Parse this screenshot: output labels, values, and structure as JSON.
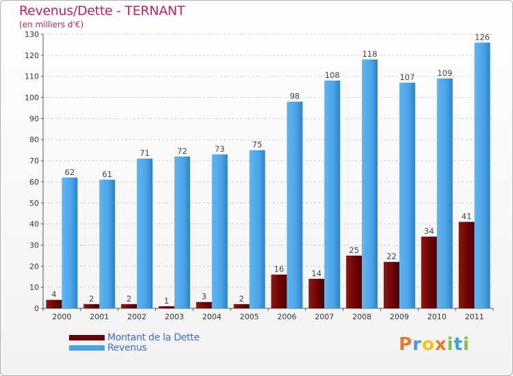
{
  "header": {
    "title": "Revenus/Dette - TERNANT",
    "subtitle": "(en milliers d'€)"
  },
  "legend": {
    "items": [
      {
        "label": "Montant de la Dette",
        "color": "#6b0000"
      },
      {
        "label": "Revenus",
        "color": "#4aa3e6"
      }
    ]
  },
  "logo": {
    "text": "Proxiti",
    "letters": [
      {
        "ch": "P",
        "color": "#e8782a"
      },
      {
        "ch": "r",
        "color": "#3aa0d8"
      },
      {
        "ch": "o",
        "color": "#f2c21a"
      },
      {
        "ch": "x",
        "color": "#e8782a"
      },
      {
        "ch": "i",
        "color": "#7cc242"
      },
      {
        "ch": "t",
        "color": "#3aa0d8"
      },
      {
        "ch": "i",
        "color": "#7cc242"
      }
    ]
  },
  "chart_data": {
    "type": "bar",
    "title": "Revenus/Dette - TERNANT",
    "ylabel": "(en milliers d'€)",
    "xlabel": "",
    "categories": [
      "2000",
      "2001",
      "2002",
      "2003",
      "2004",
      "2005",
      "2006",
      "2007",
      "2008",
      "2009",
      "2010",
      "2011"
    ],
    "series": [
      {
        "name": "Montant de la Dette",
        "color": "#6b0000",
        "values": [
          4,
          2,
          2,
          1,
          3,
          2,
          16,
          14,
          25,
          22,
          34,
          41
        ]
      },
      {
        "name": "Revenus",
        "color": "#4aa3e6",
        "values": [
          62,
          61,
          71,
          72,
          73,
          75,
          98,
          108,
          118,
          107,
          109,
          126
        ]
      }
    ],
    "ylim": [
      0,
      130
    ],
    "yticks": [
      0,
      10,
      20,
      30,
      40,
      50,
      60,
      70,
      80,
      90,
      100,
      110,
      120,
      130
    ],
    "grid": true,
    "legend_position": "bottom-left"
  }
}
